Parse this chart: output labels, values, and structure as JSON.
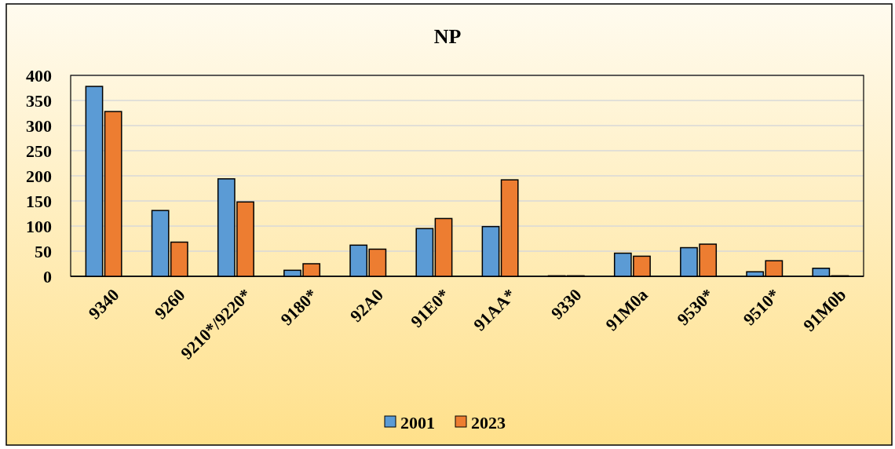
{
  "chart_data": {
    "type": "bar",
    "title": "NP",
    "categories": [
      "9340",
      "9260",
      "9210*/9220*",
      "9180*",
      "92A0",
      "91E0*",
      "91AA*",
      "9330",
      "91M0a",
      "9530*",
      "9510*",
      "91M0b"
    ],
    "series": [
      {
        "name": "2001",
        "color": "#5b9bd5",
        "values": [
          378,
          131,
          194,
          12,
          62,
          95,
          99,
          1,
          46,
          57,
          9,
          16
        ]
      },
      {
        "name": "2023",
        "color": "#ed7d31",
        "values": [
          328,
          68,
          148,
          25,
          54,
          115,
          192,
          1,
          40,
          64,
          31,
          1
        ]
      }
    ],
    "ylim": [
      0,
      400
    ],
    "yticks": [
      0,
      50,
      100,
      150,
      200,
      250,
      300,
      350,
      400
    ],
    "grid": "y",
    "legend": "bottom"
  }
}
